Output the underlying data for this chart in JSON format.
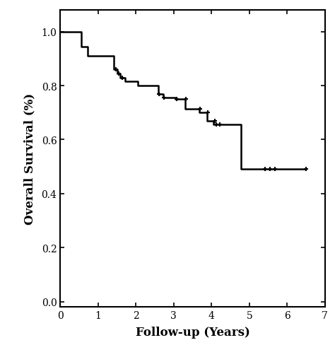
{
  "title": "",
  "xlabel": "Follow-up (Years)",
  "ylabel": "Overall Survival (%)",
  "xlim": [
    0,
    7
  ],
  "ylim": [
    -0.02,
    1.08
  ],
  "yticks": [
    0.0,
    0.2,
    0.4,
    0.6,
    0.8,
    1.0
  ],
  "xticks": [
    0,
    1,
    2,
    3,
    4,
    5,
    6,
    7
  ],
  "line_color": "#000000",
  "line_width": 1.8,
  "km_steps": [
    [
      0.0,
      1.0
    ],
    [
      0.55,
      1.0
    ],
    [
      0.55,
      0.945
    ],
    [
      0.72,
      0.945
    ],
    [
      0.72,
      0.91
    ],
    [
      1.42,
      0.91
    ],
    [
      1.42,
      0.86
    ],
    [
      1.5,
      0.86
    ],
    [
      1.5,
      0.845
    ],
    [
      1.58,
      0.845
    ],
    [
      1.58,
      0.83
    ],
    [
      1.72,
      0.83
    ],
    [
      1.72,
      0.815
    ],
    [
      2.05,
      0.815
    ],
    [
      2.05,
      0.8
    ],
    [
      2.6,
      0.8
    ],
    [
      2.6,
      0.77
    ],
    [
      2.72,
      0.77
    ],
    [
      2.72,
      0.755
    ],
    [
      3.05,
      0.755
    ],
    [
      3.05,
      0.75
    ],
    [
      3.3,
      0.75
    ],
    [
      3.3,
      0.715
    ],
    [
      3.68,
      0.715
    ],
    [
      3.68,
      0.7
    ],
    [
      3.88,
      0.7
    ],
    [
      3.88,
      0.67
    ],
    [
      4.05,
      0.67
    ],
    [
      4.05,
      0.655
    ],
    [
      4.78,
      0.655
    ],
    [
      4.78,
      0.49
    ],
    [
      6.5,
      0.49
    ]
  ],
  "censors": [
    [
      1.48,
      0.86
    ],
    [
      1.55,
      0.845
    ],
    [
      1.63,
      0.83
    ],
    [
      2.62,
      0.77
    ],
    [
      2.74,
      0.755
    ],
    [
      3.08,
      0.75
    ],
    [
      3.32,
      0.75
    ],
    [
      3.7,
      0.715
    ],
    [
      3.9,
      0.7
    ],
    [
      4.08,
      0.67
    ],
    [
      4.13,
      0.655
    ],
    [
      4.22,
      0.655
    ],
    [
      5.42,
      0.49
    ],
    [
      5.55,
      0.49
    ],
    [
      5.68,
      0.49
    ],
    [
      6.5,
      0.49
    ]
  ],
  "background_color": "#ffffff",
  "font_family": "DejaVu Serif"
}
